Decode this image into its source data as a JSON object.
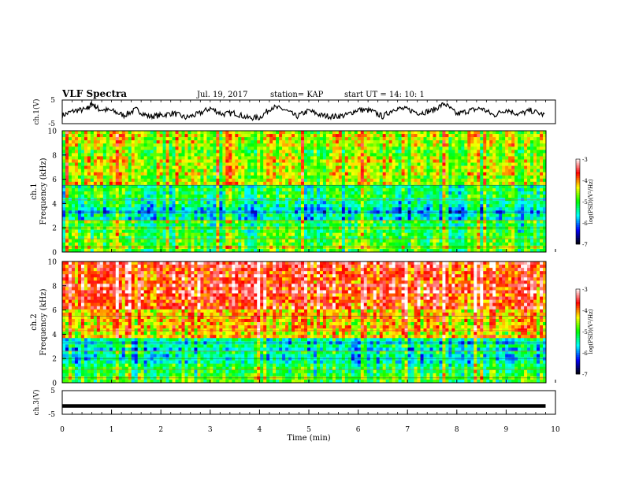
{
  "header": {
    "title": "VLF Spectra",
    "date": "Jul. 19, 2017",
    "station": "station= KAP",
    "start": "start UT =  14: 10: 1"
  },
  "colorbar": {
    "label": "log(PSD)(V²/Hz)",
    "ticks": [
      "-3",
      "-4",
      "-5",
      "-6",
      "-7"
    ],
    "range": [
      -7,
      -3
    ],
    "colors": [
      "#000000",
      "#0000ff",
      "#00ffff",
      "#00ff00",
      "#ffff00",
      "#ff0000",
      "#ffffff"
    ]
  },
  "chart_data": [
    {
      "type": "line",
      "ylabel": "ch.1(V)",
      "xlim": [
        0,
        10
      ],
      "ylim": [
        -5,
        5
      ],
      "yticks": [
        "5",
        "-5"
      ],
      "x_end": 9.8,
      "series": [
        {
          "x": [
            0,
            0.25,
            0.5,
            0.6,
            0.75,
            1.0,
            1.25,
            1.5,
            1.75,
            2.0,
            2.25,
            2.5,
            2.75,
            3.0,
            3.25,
            3.5,
            3.75,
            4.0,
            4.25,
            4.5,
            4.75,
            5.0,
            5.25,
            5.5,
            5.75,
            6.0,
            6.25,
            6.5,
            6.75,
            7.0,
            7.25,
            7.5,
            7.75,
            8.0,
            8.25,
            8.5,
            8.75,
            9.0,
            9.25,
            9.5,
            9.8
          ],
          "values": [
            -1.5,
            0.5,
            1.0,
            3.5,
            1.0,
            0.5,
            -1.5,
            1.0,
            -2.0,
            -1.5,
            -0.5,
            -2.5,
            -1.0,
            1.5,
            -1.0,
            -0.5,
            -2.5,
            -2.5,
            2.0,
            1.0,
            -2.0,
            0.5,
            -1.5,
            -2.0,
            -1.5,
            1.0,
            0.5,
            -2.0,
            1.5,
            1.0,
            -0.5,
            0.5,
            3.5,
            -1.0,
            0.5,
            1.5,
            -1.5,
            1.0,
            -1.0,
            0.5,
            -1.5
          ]
        }
      ]
    },
    {
      "type": "heatmap",
      "ylabel": "ch.1",
      "ylabel2": "Frequency (kHz)",
      "xlim": [
        0,
        10
      ],
      "ylim": [
        0,
        10
      ],
      "yticks": [
        "0",
        "2",
        "4",
        "6",
        "8",
        "10"
      ],
      "colorscale": "log(PSD)(V²/Hz)",
      "zrange": [
        -7,
        -3
      ],
      "bands_khz": [
        {
          "from": 0,
          "to": 1,
          "level": -4.8
        },
        {
          "from": 1,
          "to": 2.6,
          "level": -5.1
        },
        {
          "from": 2.6,
          "to": 3.7,
          "level": -5.7
        },
        {
          "from": 3.7,
          "to": 5.5,
          "level": -5.3
        },
        {
          "from": 5.5,
          "to": 10,
          "level": -4.6
        }
      ]
    },
    {
      "type": "heatmap",
      "ylabel": "ch.2",
      "ylabel2": "Frequency (kHz)",
      "xlim": [
        0,
        10
      ],
      "ylim": [
        0,
        10
      ],
      "yticks": [
        "0",
        "2",
        "4",
        "6",
        "8",
        "10"
      ],
      "colorscale": "log(PSD)(V²/Hz)",
      "zrange": [
        -7,
        -3
      ],
      "bands_khz": [
        {
          "from": 0,
          "to": 1.7,
          "level": -5.0
        },
        {
          "from": 1.7,
          "to": 3.6,
          "level": -5.5
        },
        {
          "from": 3.6,
          "to": 6,
          "level": -4.3
        },
        {
          "from": 6,
          "to": 10,
          "level": -3.6
        }
      ]
    },
    {
      "type": "line",
      "ylabel": "ch.3(V)",
      "xlabel": "Time (min)",
      "xlim": [
        0,
        10
      ],
      "ylim": [
        -5,
        5
      ],
      "yticks": [
        "5",
        "-5"
      ],
      "xticks": [
        "0",
        "1",
        "2",
        "3",
        "4",
        "5",
        "6",
        "7",
        "8",
        "9",
        "10"
      ],
      "x_end": 9.8,
      "series": [
        {
          "x": [
            0,
            9.8
          ],
          "values": [
            -1.5,
            -1.5
          ]
        }
      ]
    }
  ]
}
